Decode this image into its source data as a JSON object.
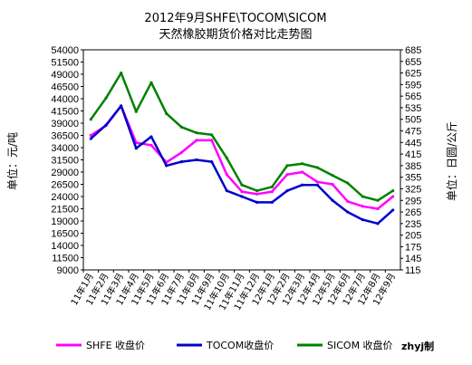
{
  "chart_data": {
    "type": "line",
    "title": "2012年9月SHFE\\TOCOM\\SICOM",
    "subtitle": "天然橡胶期货价格对比走势图",
    "ylabel_left": "单位：元/吨",
    "ylabel_right": "单位：日圆/公斤",
    "ylim_left": [
      9000,
      54000
    ],
    "ylim_right": [
      115,
      685
    ],
    "yticks_left": [
      9000,
      11500,
      14000,
      16500,
      19000,
      21500,
      24000,
      26500,
      29000,
      31500,
      34000,
      36500,
      39000,
      41500,
      44000,
      46500,
      49000,
      51500,
      54000
    ],
    "yticks_right": [
      115,
      145,
      175,
      205,
      235,
      265,
      295,
      325,
      355,
      385,
      415,
      445,
      475,
      505,
      535,
      565,
      595,
      625,
      655,
      685
    ],
    "categories": [
      "11年1月",
      "11年2月",
      "11年3月",
      "11年4月",
      "11年5月",
      "11年6月",
      "11年7月",
      "11年8月",
      "11年9月",
      "11年10月",
      "11年11月",
      "11年12月",
      "12年1月",
      "12年2月",
      "12年3月",
      "12年4月",
      "12年5月",
      "12年6月",
      "12年7月",
      "12年8月",
      "12年9月"
    ],
    "series": [
      {
        "name": "SHFE 收盘价",
        "axis": "left",
        "color": "#ff00ff",
        "values": [
          36500,
          38500,
          42500,
          35000,
          34500,
          31000,
          33000,
          35500,
          35500,
          28500,
          25000,
          24500,
          25000,
          28500,
          29000,
          27000,
          26500,
          23000,
          22000,
          21500,
          24000
        ]
      },
      {
        "name": "TOCOM收盘价",
        "axis": "right",
        "color": "#0000cc",
        "values": [
          455,
          490,
          540,
          430,
          460,
          385,
          395,
          400,
          395,
          320,
          305,
          290,
          290,
          320,
          335,
          335,
          295,
          265,
          245,
          235,
          270
        ]
      },
      {
        "name": "SICOM 收盘价",
        "axis": "right",
        "color": "#008000",
        "values": [
          505,
          560,
          625,
          525,
          600,
          520,
          485,
          470,
          465,
          405,
          335,
          320,
          330,
          385,
          390,
          380,
          360,
          340,
          305,
          295,
          320
        ]
      }
    ],
    "grid": false,
    "legend_position": "bottom"
  },
  "watermark": "zhyj制"
}
